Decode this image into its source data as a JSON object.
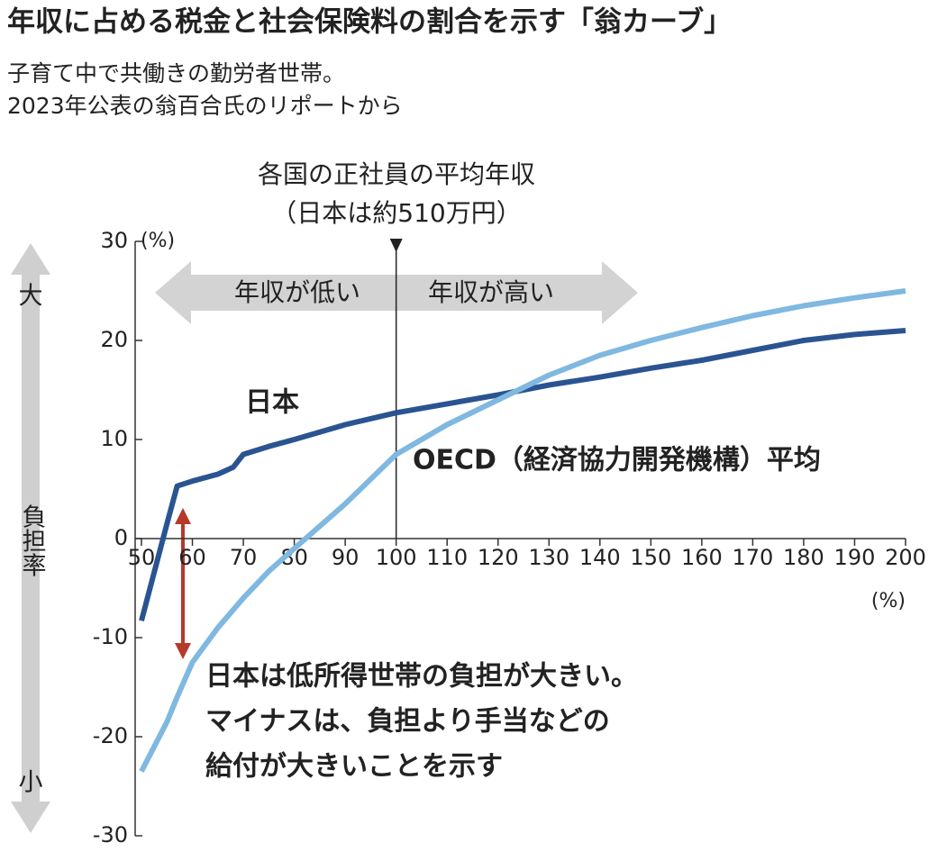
{
  "chart_data": {
    "type": "line",
    "title": "年収に占める税金と社会保険料の割合を示す「翁カーブ」",
    "subtitle": [
      "子育て中で共働きの勤労者世帯。",
      "2023年公表の翁百合氏のリポートから"
    ],
    "x": [
      50,
      55,
      57,
      60,
      65,
      68,
      70,
      75,
      80,
      90,
      100,
      110,
      120,
      130,
      140,
      150,
      160,
      170,
      180,
      190,
      200
    ],
    "series": [
      {
        "name": "日本",
        "color": "#2a5491",
        "values": [
          -8.3,
          1.5,
          5.3,
          5.8,
          6.5,
          7.2,
          8.5,
          9.3,
          10,
          11.5,
          12.7,
          13.6,
          14.5,
          15.5,
          16.3,
          17.2,
          18,
          19,
          20,
          20.6,
          21
        ]
      },
      {
        "name": "OECD（経済協力開発機構）平均",
        "color": "#7fb8e0",
        "values": [
          -23.5,
          -18.5,
          -16,
          -12.5,
          -9,
          -7.2,
          -6,
          -3.3,
          -1,
          3.5,
          8.5,
          11.5,
          14,
          16.5,
          18.5,
          20,
          21.3,
          22.5,
          23.5,
          24.3,
          25
        ]
      }
    ],
    "xlim": [
      50,
      200
    ],
    "ylim": [
      -30,
      30
    ],
    "xticks": [
      50,
      60,
      70,
      80,
      90,
      100,
      110,
      120,
      130,
      140,
      150,
      160,
      170,
      180,
      190,
      200
    ],
    "yticks": [
      -30,
      -20,
      -10,
      0,
      10,
      20,
      30
    ],
    "x_unit": "(%)",
    "y_unit": "(%)",
    "reference": {
      "x": 100,
      "label": [
        "各国の正社員の平均年収",
        "（日本は約510万円）"
      ]
    },
    "range_labels": [
      "年収が低い",
      "年収が高い"
    ],
    "side_labels": [
      "大",
      "負担率",
      "小"
    ],
    "annotation": [
      "日本は低所得世帯の負担が大きい。",
      "マイナスは、負担より手当などの",
      "給付が大きいことを示す"
    ]
  }
}
